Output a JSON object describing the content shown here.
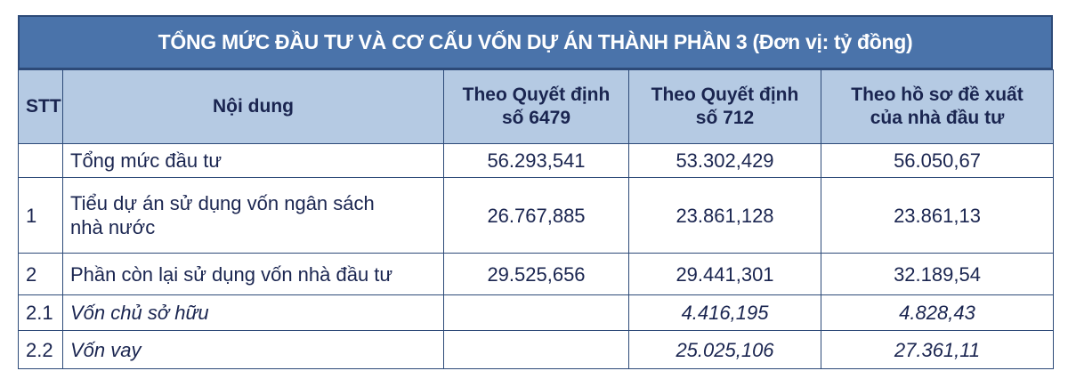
{
  "title": "TỔNG MỨC ĐẦU TƯ VÀ CƠ CẤU VỐN DỰ ÁN THÀNH PHẦN 3 (Đơn vị: tỷ đồng)",
  "headers": {
    "stt": "STT",
    "content": "Nội dung",
    "col1_line1": "Theo Quyết định",
    "col1_line2": "số 6479",
    "col2_line1": "Theo Quyết định",
    "col2_line2": "số 712",
    "col3_line1": "Theo hồ sơ đề xuất",
    "col3_line2": "của nhà đầu tư"
  },
  "rows": [
    {
      "stt": "",
      "content": "Tổng mức đầu tư",
      "v1": "56.293,541",
      "v2": "53.302,429",
      "v3": "56.050,67"
    },
    {
      "stt": "1",
      "content_line1": "Tiểu dự án sử dụng vốn ngân sách",
      "content_line2": "nhà nước",
      "v1": "26.767,885",
      "v2": "23.861,128",
      "v3": "23.861,13"
    },
    {
      "stt": "2",
      "content": "Phần còn lại sử dụng vốn nhà đầu tư",
      "v1": "29.525,656",
      "v2": "29.441,301",
      "v3": "32.189,54"
    },
    {
      "stt": "2.1",
      "content": "Vốn chủ sở hữu",
      "v1": "",
      "v2": "4.416,195",
      "v3": "4.828,43"
    },
    {
      "stt": "2.2",
      "content": "Vốn vay",
      "v1": "",
      "v2": "25.025,106",
      "v3": "27.361,11"
    }
  ]
}
